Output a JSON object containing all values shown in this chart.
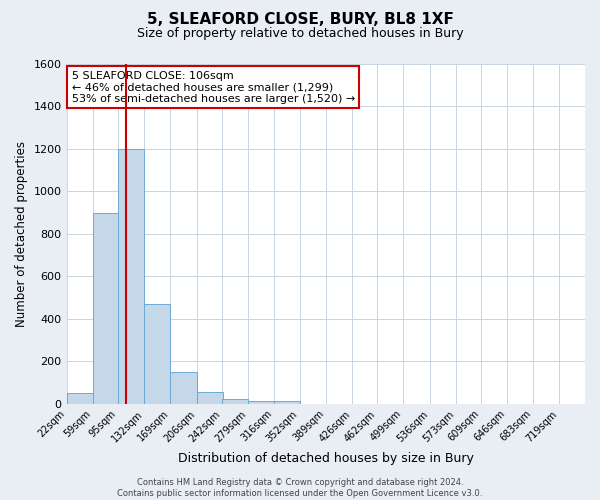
{
  "title": "5, SLEAFORD CLOSE, BURY, BL8 1XF",
  "subtitle": "Size of property relative to detached houses in Bury",
  "xlabel": "Distribution of detached houses by size in Bury",
  "ylabel": "Number of detached properties",
  "bar_values": [
    50,
    900,
    1200,
    470,
    150,
    55,
    25,
    15,
    15,
    0,
    0,
    0,
    0,
    0,
    0,
    0,
    0,
    0,
    0,
    0
  ],
  "bin_edges": [
    22,
    59,
    95,
    132,
    169,
    206,
    242,
    279,
    316,
    352,
    389,
    426,
    462,
    499,
    536,
    573,
    609,
    646,
    683,
    719,
    756
  ],
  "bar_color": "#c5d8ea",
  "bar_edge_color": "#6aaad4",
  "vline_x": 106,
  "vline_color": "#cc0000",
  "ylim": [
    0,
    1600
  ],
  "yticks": [
    0,
    200,
    400,
    600,
    800,
    1000,
    1200,
    1400,
    1600
  ],
  "annotation_text": "5 SLEAFORD CLOSE: 106sqm\n← 46% of detached houses are smaller (1,299)\n53% of semi-detached houses are larger (1,520) →",
  "footer_text": "Contains HM Land Registry data © Crown copyright and database right 2024.\nContains public sector information licensed under the Open Government Licence v3.0.",
  "bg_color": "#e8eef4",
  "plot_bg_color": "#ffffff",
  "grid_color": "#c8d4e0",
  "title_fontsize": 11,
  "subtitle_fontsize": 9,
  "annotation_fontsize": 8,
  "footer_fontsize": 6
}
